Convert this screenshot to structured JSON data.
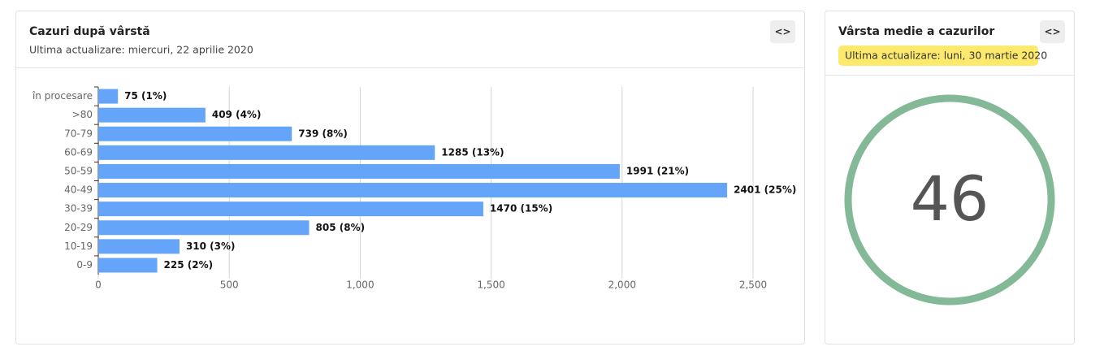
{
  "chart_data": {
    "type": "bar",
    "orientation": "horizontal",
    "title": "Cazuri după vârstă",
    "subtitle": "Ultima actualizare: miercuri, 22 aprilie 2020",
    "embed_label": "<>",
    "categories": [
      "în procesare",
      ">80",
      "70-79",
      "60-69",
      "50-59",
      "40-49",
      "30-39",
      "20-29",
      "10-19",
      "0-9"
    ],
    "values": [
      75,
      409,
      739,
      1285,
      1991,
      2401,
      1470,
      805,
      310,
      225
    ],
    "value_labels": [
      "75 (1%)",
      "409 (4%)",
      "739 (8%)",
      "1285 (13%)",
      "1991 (21%)",
      "2401 (25%)",
      "1470 (15%)",
      "805 (8%)",
      "310 (3%)",
      "225 (2%)"
    ],
    "color": "#64a5fa",
    "xlim": [
      0,
      2500
    ],
    "xticks": [
      0,
      500,
      {
        "value": 1000,
        "label": "1,000"
      },
      {
        "value": 1500,
        "label": "1,500"
      },
      {
        "value": 2000,
        "label": "2,000"
      },
      {
        "value": 2500,
        "label": "2,500"
      }
    ],
    "grid": true
  },
  "average_age_card": {
    "title": "Vârsta medie a cazurilor",
    "updated": "Ultima actualizare: luni, 30 martie 2020",
    "value": 46,
    "embed_label": "<>",
    "color": "#84b998"
  }
}
